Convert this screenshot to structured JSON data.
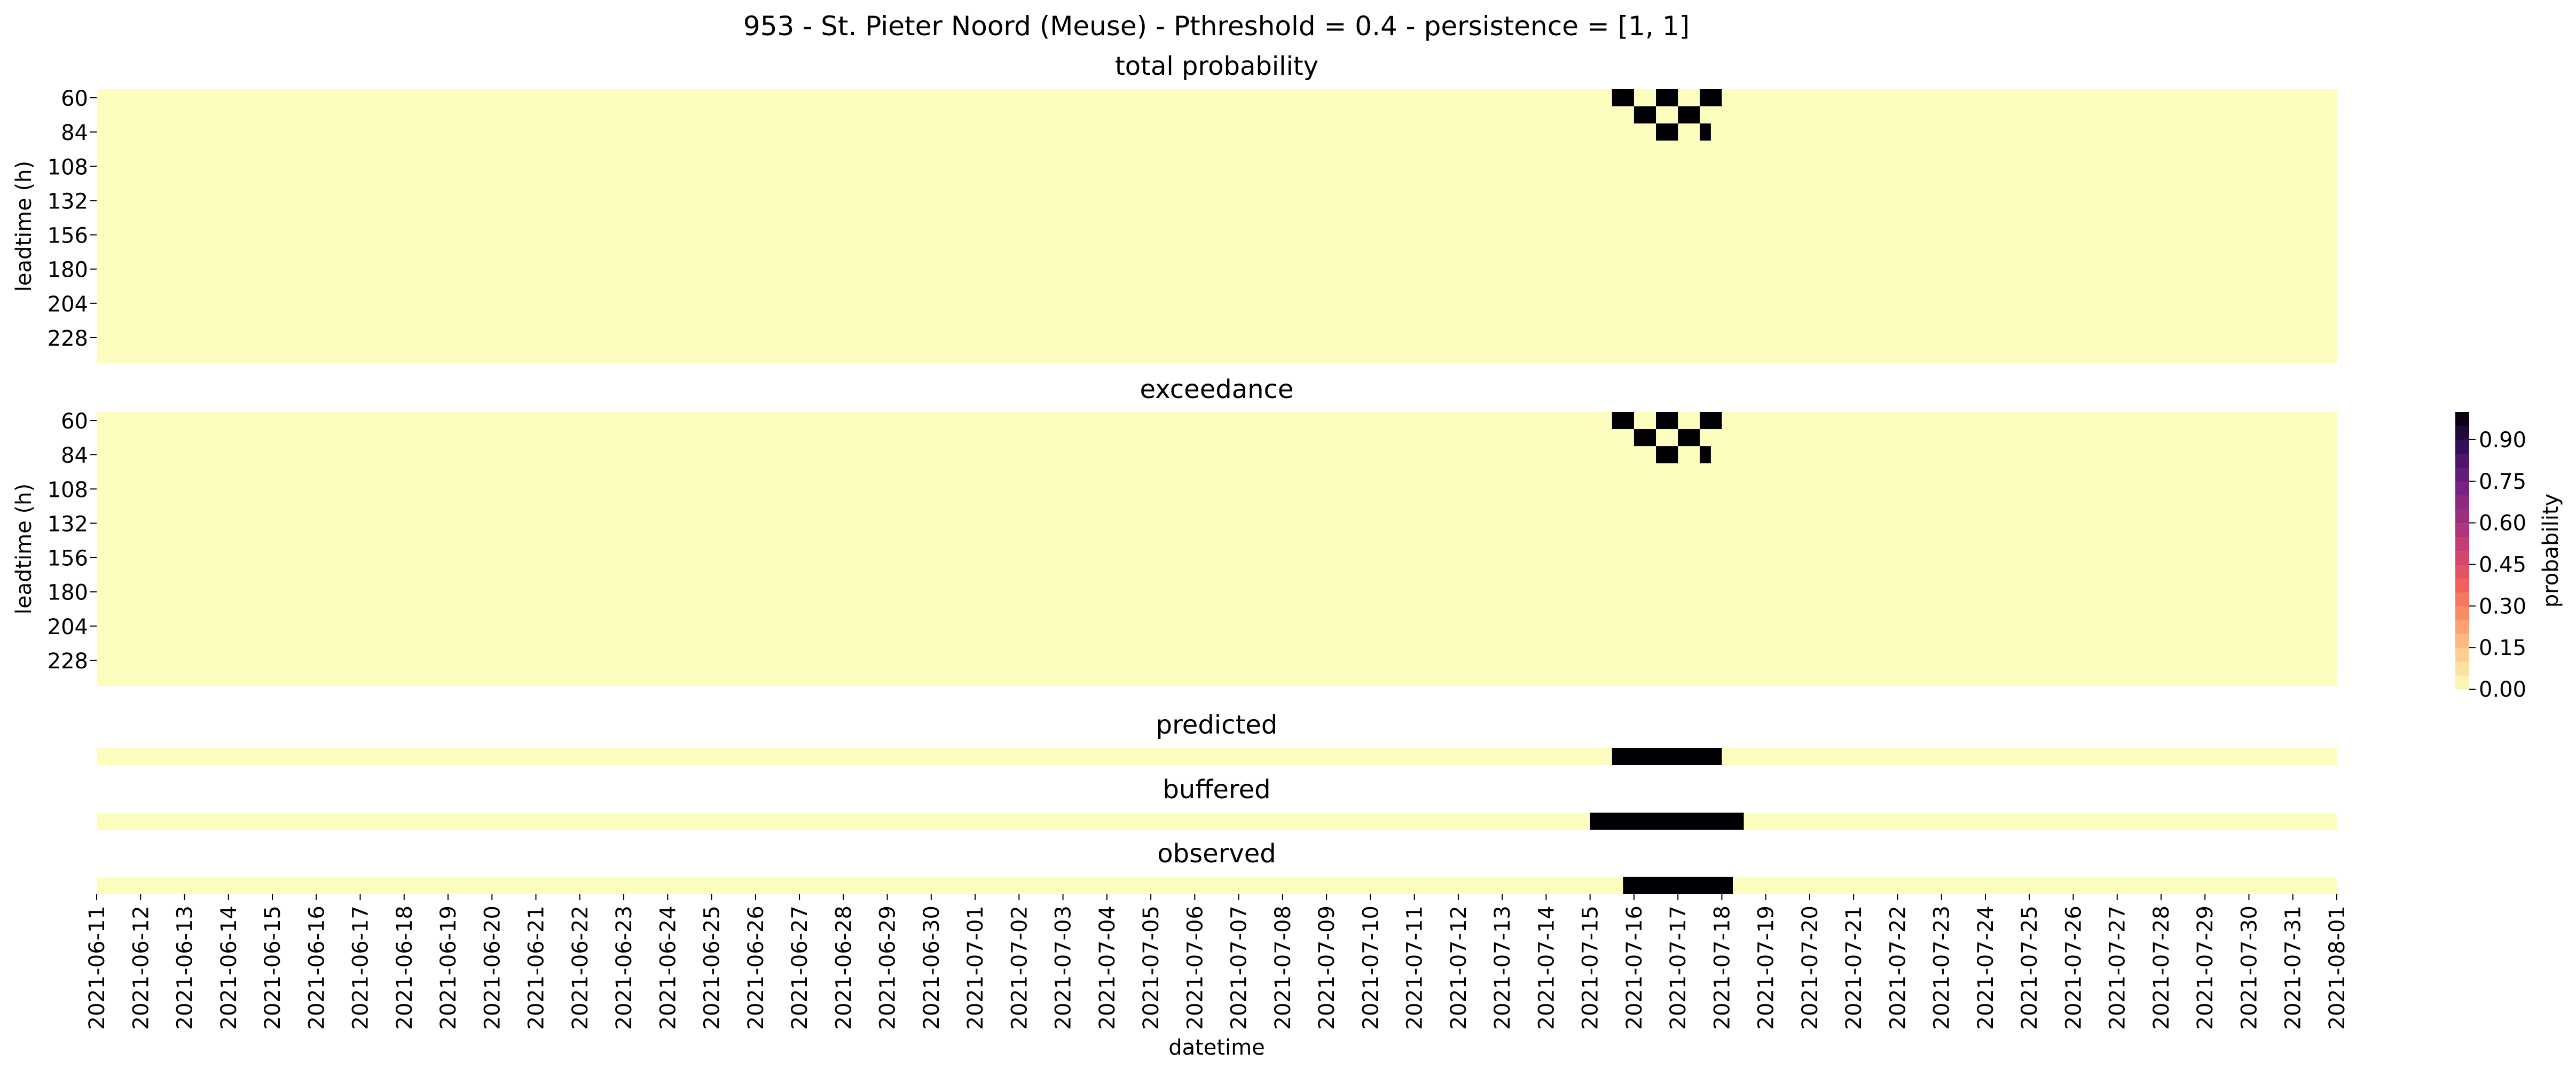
{
  "figure": {
    "title": "953 - St. Pieter Noord (Meuse) - Pthreshold = 0.4 - persistence = [1, 1]"
  },
  "colors": {
    "background": "#ffffff",
    "low": "#fcfdbf",
    "high": "#000004",
    "colormap": "magma_r"
  },
  "chart_data": [
    {
      "type": "heatmap",
      "title": "total probability",
      "ylabel": "leadtime (h)",
      "x_range": [
        "2021-06-11",
        "2021-08-01"
      ],
      "y_labels": [
        "60",
        "84",
        "108",
        "132",
        "156",
        "180",
        "204",
        "228"
      ],
      "y_rows": [
        "60",
        "72",
        "84",
        "96",
        "108",
        "120",
        "132",
        "144",
        "156",
        "168",
        "180",
        "192",
        "204",
        "216",
        "228",
        "240"
      ],
      "default_value": 0.0,
      "high_cells": [
        {
          "leadtime": 60,
          "start": "2021-07-15T12:00",
          "end": "2021-07-16T00:00",
          "value": 1.0
        },
        {
          "leadtime": 60,
          "start": "2021-07-16T12:00",
          "end": "2021-07-17T00:00",
          "value": 1.0
        },
        {
          "leadtime": 60,
          "start": "2021-07-17T12:00",
          "end": "2021-07-18T00:00",
          "value": 1.0
        },
        {
          "leadtime": 72,
          "start": "2021-07-16T00:00",
          "end": "2021-07-16T12:00",
          "value": 1.0
        },
        {
          "leadtime": 72,
          "start": "2021-07-17T00:00",
          "end": "2021-07-17T12:00",
          "value": 1.0
        },
        {
          "leadtime": 84,
          "start": "2021-07-16T12:00",
          "end": "2021-07-17T00:00",
          "value": 1.0
        },
        {
          "leadtime": 84,
          "start": "2021-07-17T12:00",
          "end": "2021-07-17T18:00",
          "value": 1.0
        }
      ]
    },
    {
      "type": "heatmap",
      "title": "exceedance",
      "ylabel": "leadtime (h)",
      "x_range": [
        "2021-06-11",
        "2021-08-01"
      ],
      "y_labels": [
        "60",
        "84",
        "108",
        "132",
        "156",
        "180",
        "204",
        "228"
      ],
      "y_rows": [
        "60",
        "72",
        "84",
        "96",
        "108",
        "120",
        "132",
        "144",
        "156",
        "168",
        "180",
        "192",
        "204",
        "216",
        "228",
        "240"
      ],
      "default_value": 0.0,
      "high_cells": [
        {
          "leadtime": 60,
          "start": "2021-07-15T12:00",
          "end": "2021-07-16T00:00",
          "value": 1.0
        },
        {
          "leadtime": 60,
          "start": "2021-07-16T12:00",
          "end": "2021-07-17T00:00",
          "value": 1.0
        },
        {
          "leadtime": 60,
          "start": "2021-07-17T12:00",
          "end": "2021-07-18T00:00",
          "value": 1.0
        },
        {
          "leadtime": 72,
          "start": "2021-07-16T00:00",
          "end": "2021-07-16T12:00",
          "value": 1.0
        },
        {
          "leadtime": 72,
          "start": "2021-07-17T00:00",
          "end": "2021-07-17T12:00",
          "value": 1.0
        },
        {
          "leadtime": 84,
          "start": "2021-07-16T12:00",
          "end": "2021-07-17T00:00",
          "value": 1.0
        },
        {
          "leadtime": 84,
          "start": "2021-07-17T12:00",
          "end": "2021-07-17T18:00",
          "value": 1.0
        }
      ]
    },
    {
      "type": "heatmap",
      "title": "predicted",
      "x_range": [
        "2021-06-11",
        "2021-08-01"
      ],
      "default_value": 0.0,
      "high_spans": [
        {
          "start": "2021-07-15T12:00",
          "end": "2021-07-18T00:00",
          "value": 1.0
        }
      ]
    },
    {
      "type": "heatmap",
      "title": "buffered",
      "x_range": [
        "2021-06-11",
        "2021-08-01"
      ],
      "default_value": 0.0,
      "high_spans": [
        {
          "start": "2021-07-15T00:00",
          "end": "2021-07-18T12:00",
          "value": 1.0
        }
      ]
    },
    {
      "type": "heatmap",
      "title": "observed",
      "x_range": [
        "2021-06-11",
        "2021-08-01"
      ],
      "xlabel": "datetime",
      "x_tick_labels": [
        "2021-06-11",
        "2021-06-12",
        "2021-06-13",
        "2021-06-14",
        "2021-06-15",
        "2021-06-16",
        "2021-06-17",
        "2021-06-18",
        "2021-06-19",
        "2021-06-20",
        "2021-06-21",
        "2021-06-22",
        "2021-06-23",
        "2021-06-24",
        "2021-06-25",
        "2021-06-26",
        "2021-06-27",
        "2021-06-28",
        "2021-06-29",
        "2021-06-30",
        "2021-07-01",
        "2021-07-02",
        "2021-07-03",
        "2021-07-04",
        "2021-07-05",
        "2021-07-06",
        "2021-07-07",
        "2021-07-08",
        "2021-07-09",
        "2021-07-10",
        "2021-07-11",
        "2021-07-12",
        "2021-07-13",
        "2021-07-14",
        "2021-07-15",
        "2021-07-16",
        "2021-07-17",
        "2021-07-18",
        "2021-07-19",
        "2021-07-20",
        "2021-07-21",
        "2021-07-22",
        "2021-07-23",
        "2021-07-24",
        "2021-07-25",
        "2021-07-26",
        "2021-07-27",
        "2021-07-28",
        "2021-07-29",
        "2021-07-30",
        "2021-07-31",
        "2021-08-01"
      ],
      "default_value": 0.0,
      "high_spans": [
        {
          "start": "2021-07-15T18:00",
          "end": "2021-07-18T06:00",
          "value": 1.0
        }
      ]
    }
  ],
  "colorbar": {
    "label": "probability",
    "ticks": [
      "0.00",
      "0.15",
      "0.30",
      "0.45",
      "0.60",
      "0.75",
      "0.90"
    ],
    "tick_values": [
      0.0,
      0.15,
      0.3,
      0.45,
      0.6,
      0.75,
      0.9
    ],
    "range": [
      0,
      1
    ],
    "n_levels": 20
  }
}
